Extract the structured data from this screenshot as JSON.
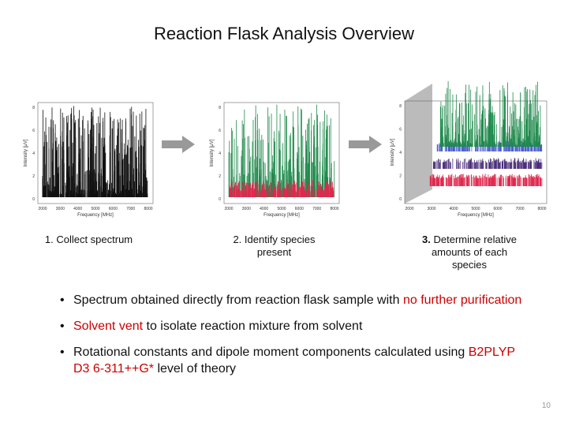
{
  "slide": {
    "title": "Reaction Flask Analysis Overview",
    "page_number": "10"
  },
  "steps": [
    {
      "number": "1.",
      "text": "Collect spectrum"
    },
    {
      "number": "2.",
      "text": "Identify species present"
    },
    {
      "number": "3.",
      "text": "Determine relative amounts of each species"
    }
  ],
  "spectra": {
    "x_axis_label": "Frequency [MHz]",
    "y_axis_label": "Intensity [μV]",
    "x_ticks": [
      "2000",
      "3000",
      "4000",
      "5000",
      "6000",
      "7000",
      "8000"
    ],
    "y_ticks": [
      "0",
      "2",
      "4",
      "6",
      "8"
    ],
    "colors": {
      "black": "#111111",
      "green": "#1f8a4c",
      "red": "#e0284e",
      "blue": "#4a5bd0",
      "purple": "#4b2f7a"
    }
  },
  "bullets": [
    {
      "pre": "Spectrum obtained directly from reaction flask sample with ",
      "red": "no further purification",
      "post": ""
    },
    {
      "pre": "",
      "red": "Solvent vent",
      "post": " to isolate reaction mixture from solvent"
    },
    {
      "pre": "Rotational constants and dipole moment components calculated using ",
      "red": "B2PLYP D3 6-311++G*",
      "post": " level of theory"
    }
  ]
}
